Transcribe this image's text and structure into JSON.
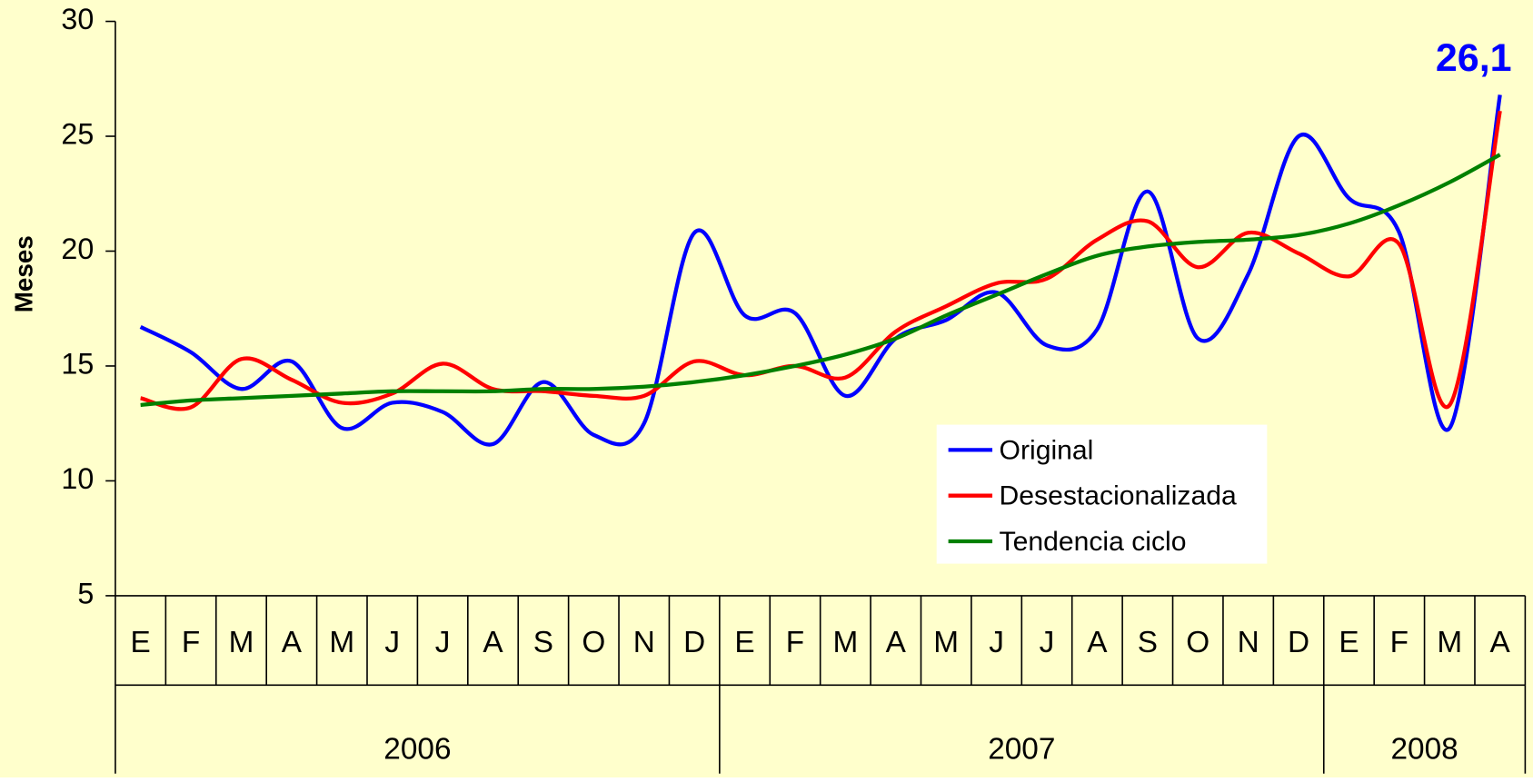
{
  "chart_data": {
    "type": "line",
    "y_label": "Meses",
    "categories": [
      "E",
      "F",
      "M",
      "A",
      "M",
      "J",
      "J",
      "A",
      "S",
      "O",
      "N",
      "D",
      "E",
      "F",
      "M",
      "A",
      "M",
      "J",
      "J",
      "A",
      "S",
      "O",
      "N",
      "D",
      "E",
      "F",
      "M",
      "A"
    ],
    "groups": [
      {
        "label": "2006",
        "count": 12
      },
      {
        "label": "2007",
        "count": 12
      },
      {
        "label": "2008",
        "count": 4
      }
    ],
    "series": [
      {
        "name": "Original",
        "color": "#0000ff",
        "values": [
          16.7,
          15.6,
          14.0,
          15.2,
          12.3,
          13.4,
          13.0,
          11.6,
          14.3,
          12.0,
          12.5,
          20.8,
          17.2,
          17.3,
          13.7,
          16.2,
          17.0,
          18.2,
          15.9,
          16.6,
          22.6,
          16.2,
          19.0,
          25.0,
          22.3,
          20.8,
          12.3,
          26.8
        ]
      },
      {
        "name": "Desestacionalizada",
        "color": "#ff0000",
        "values": [
          13.6,
          13.2,
          15.3,
          14.4,
          13.4,
          13.8,
          15.1,
          14.0,
          13.9,
          13.7,
          13.7,
          15.2,
          14.6,
          15.0,
          14.5,
          16.5,
          17.6,
          18.6,
          18.8,
          20.5,
          21.3,
          19.3,
          20.8,
          19.9,
          18.9,
          20.3,
          13.3,
          26.1
        ],
        "value_labels": [
          null,
          null,
          null,
          null,
          null,
          null,
          null,
          null,
          null,
          null,
          null,
          null,
          null,
          null,
          null,
          null,
          null,
          null,
          null,
          null,
          null,
          null,
          null,
          null,
          null,
          null,
          null,
          "26,1"
        ],
        "label_color": "#0000ff"
      },
      {
        "name": "Tendencia ciclo",
        "color": "#008000",
        "values": [
          13.3,
          13.5,
          13.6,
          13.7,
          13.8,
          13.9,
          13.9,
          13.9,
          14.0,
          14.0,
          14.1,
          14.3,
          14.6,
          15.0,
          15.5,
          16.2,
          17.2,
          18.1,
          19.0,
          19.8,
          20.2,
          20.4,
          20.5,
          20.7,
          21.2,
          22.0,
          23.0,
          24.2
        ]
      }
    ],
    "ylim": [
      5,
      30
    ],
    "yticks": [
      5,
      10,
      15,
      20,
      25,
      30
    ],
    "background": "#ffffcc",
    "legend": "lower right"
  }
}
